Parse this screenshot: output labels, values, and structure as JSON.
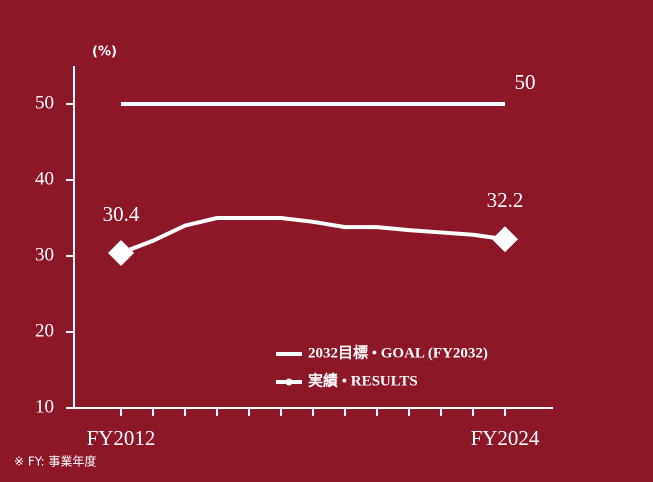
{
  "chart_data": {
    "type": "line",
    "y_label": "(%)",
    "categories": [
      "FY2012",
      null,
      null,
      null,
      null,
      null,
      null,
      null,
      null,
      null,
      null,
      null,
      "FY2024"
    ],
    "series": [
      {
        "name": "2032目標 • GOAL (FY2032)",
        "color": "#ffffff",
        "values": [
          50,
          50,
          50,
          50,
          50,
          50,
          50,
          50,
          50,
          50,
          50,
          50,
          50
        ]
      },
      {
        "name": "実績 • RESULTS",
        "color": "#ffffff",
        "values": [
          30.4,
          32.0,
          34.0,
          35.0,
          35.0,
          35.0,
          34.5,
          33.8,
          33.8,
          33.4,
          33.1,
          32.8,
          32.2
        ]
      }
    ],
    "ylim": [
      10,
      55
    ],
    "yticks": [
      10,
      20,
      30,
      40,
      50
    ],
    "footnote": "※ FY: 事業年度"
  }
}
